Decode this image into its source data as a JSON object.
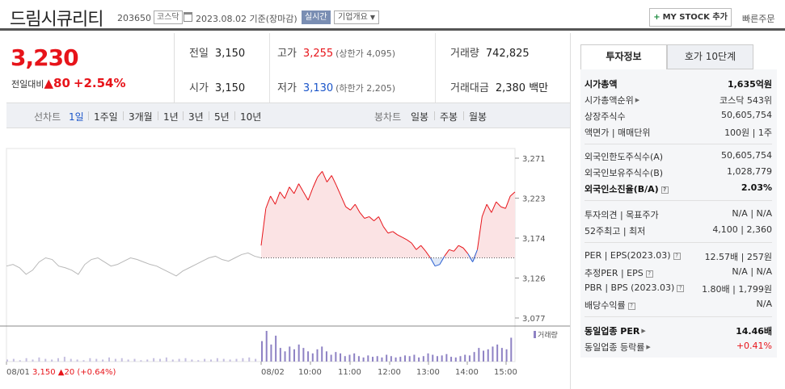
{
  "header": {
    "name": "드림시큐리티",
    "code": "203650",
    "market": "코스닥",
    "date": "2023.08.02 기준(장마감)",
    "realtime": "실시간",
    "company_info": "기업개요",
    "my_stock": "MY STOCK 추가",
    "quick_order": "빠른주문"
  },
  "price": {
    "current": "3,230",
    "change_label": "전일대비",
    "change_value": "80",
    "change_pct": "+2.54%"
  },
  "summary": {
    "prev_label": "전일",
    "prev": "3,150",
    "open_label": "시가",
    "open": "3,150",
    "high_label": "고가",
    "high": "3,255",
    "upper_limit": "(상한가 4,095)",
    "low_label": "저가",
    "low": "3,130",
    "lower_limit": "(하한가 2,205)",
    "volume_label": "거래량",
    "volume": "742,825",
    "amount_label": "거래대금",
    "amount": "2,380 백만"
  },
  "periods": {
    "line_label": "선차트",
    "line_options": [
      "1일",
      "1주일",
      "3개월",
      "1년",
      "3년",
      "5년",
      "10년"
    ],
    "candle_label": "봉차트",
    "candle_options": [
      "일봉",
      "주봉",
      "월봉"
    ]
  },
  "chart_data": {
    "type": "line",
    "y_ticks": [
      "3,271",
      "3,223",
      "3,174",
      "3,126",
      "3,077"
    ],
    "ylim": [
      3077,
      3271
    ],
    "baseline": 3150,
    "x_ticks": [
      "08/01",
      "08/02",
      "10:00",
      "11:00",
      "12:00",
      "13:00",
      "14:00",
      "15:00"
    ],
    "volume_label": "거래량",
    "prev_day_summary": {
      "date": "08/01",
      "close": "3,150",
      "change": "20",
      "pct": "(+0.64%)"
    },
    "prev_day": [
      3140,
      3142,
      3138,
      3130,
      3135,
      3145,
      3150,
      3148,
      3140,
      3138,
      3135,
      3130,
      3142,
      3148,
      3150,
      3145,
      3140,
      3142,
      3146,
      3150,
      3148,
      3145,
      3142,
      3140,
      3136,
      3132,
      3128,
      3134,
      3138,
      3142,
      3146,
      3150,
      3152,
      3148,
      3146,
      3150,
      3154,
      3156,
      3152,
      3150
    ],
    "today": [
      3165,
      3210,
      3225,
      3215,
      3230,
      3222,
      3236,
      3228,
      3240,
      3230,
      3220,
      3235,
      3248,
      3255,
      3242,
      3250,
      3238,
      3225,
      3212,
      3208,
      3215,
      3205,
      3198,
      3200,
      3195,
      3200,
      3188,
      3180,
      3182,
      3178,
      3175,
      3172,
      3168,
      3160,
      3165,
      3158,
      3150,
      3140,
      3142,
      3152,
      3160,
      3158,
      3165,
      3162,
      3155,
      3145,
      3160,
      3200,
      3215,
      3205,
      3218,
      3212,
      3210,
      3225,
      3230
    ],
    "volume_prev": [
      3,
      4,
      2,
      5,
      3,
      6,
      4,
      3,
      5,
      7,
      4,
      3,
      2,
      5,
      4,
      3,
      6,
      4,
      5,
      3,
      4,
      2,
      3,
      5,
      4,
      6,
      3,
      4,
      5,
      3,
      2,
      4,
      3,
      5,
      4,
      3,
      4,
      5,
      6,
      4
    ],
    "volume_today": [
      30,
      45,
      25,
      38,
      20,
      15,
      22,
      18,
      25,
      20,
      15,
      12,
      18,
      22,
      15,
      10,
      14,
      12,
      8,
      10,
      12,
      8,
      6,
      9,
      7,
      8,
      6,
      10,
      8,
      6,
      7,
      9,
      8,
      10,
      6,
      8,
      12,
      10,
      8,
      9,
      11,
      7,
      6,
      8,
      10,
      9,
      14,
      20,
      16,
      18,
      22,
      25,
      20,
      18,
      35
    ]
  },
  "invest": {
    "tab1": "투자정보",
    "tab2": "호가 10단계",
    "market_cap_label": "시가총액",
    "market_cap": "1,635억원",
    "rank_label": "시가총액순위",
    "rank": "코스닥 543위",
    "shares_label": "상장주식수",
    "shares": "50,605,754",
    "par_label": "액면가 | 매매단위",
    "par": "100원 | 1주",
    "foreign_limit_label": "외국인한도주식수(A)",
    "foreign_limit": "50,605,754",
    "foreign_hold_label": "외국인보유주식수(B)",
    "foreign_hold": "1,028,779",
    "foreign_ratio_label": "외국인소진율(B/A)",
    "foreign_ratio": "2.03%",
    "opinion_label": "투자의견 | 목표주가",
    "opinion": "N/A | N/A",
    "week52_label": "52주최고 | 최저",
    "week52": "4,100 | 2,360",
    "per_label": "PER | EPS(2023.03)",
    "per": "12.57배 | 257원",
    "est_label": "추정PER | EPS",
    "est": "N/A | N/A",
    "pbr_label": "PBR | BPS (2023.03)",
    "pbr": "1.80배 | 1,799원",
    "div_label": "배당수익률",
    "div": "N/A",
    "sector_per_label": "동일업종 PER",
    "sector_per": "14.46배",
    "sector_rate_label": "동일업종 등락률",
    "sector_rate": "+0.41%"
  }
}
